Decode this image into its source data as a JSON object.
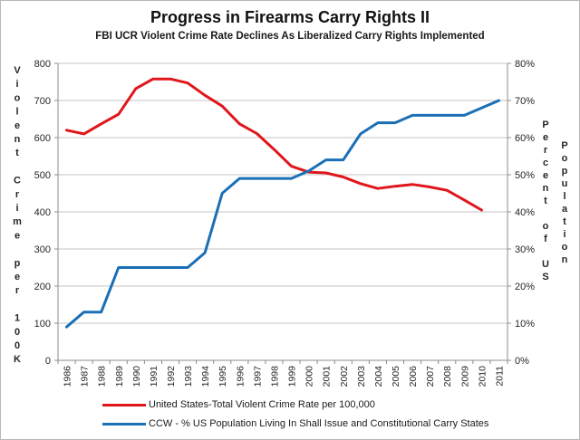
{
  "window": {
    "background": "#ffffff",
    "border_color": "#b7b7b7"
  },
  "header": {
    "title": "Progress in Firearms Carry Rights II",
    "subtitle": "FBI UCR Violent Crime Rate Declines As Liberalized Carry Rights Implemented"
  },
  "chart_data": {
    "type": "line",
    "title": "Progress in Firearms Carry Rights II",
    "subtitle": "FBI UCR Violent Crime Rate Declines As Liberalized Carry Rights Implemented",
    "grid": true,
    "legend_position": "bottom",
    "x": [
      "1986",
      "1987",
      "1988",
      "1989",
      "1990",
      "1991",
      "1992",
      "1993",
      "1994",
      "1995",
      "1996",
      "1997",
      "1998",
      "1999",
      "2000",
      "2001",
      "2002",
      "2003",
      "2004",
      "2005",
      "2006",
      "2007",
      "2008",
      "2009",
      "2010",
      "2011"
    ],
    "series": [
      {
        "name": "United States-Total Violent Crime Rate per 100,000",
        "axis": "left",
        "color": "#e0161c",
        "values": [
          620,
          610,
          637,
          663,
          732,
          758,
          758,
          747,
          714,
          685,
          637,
          611,
          568,
          523,
          507,
          505,
          494,
          476,
          463,
          469,
          474,
          467,
          458,
          432,
          405,
          null
        ]
      },
      {
        "name": "CCW - % US Population Living In Shall Issue and Constitutional Carry States",
        "axis": "right",
        "color": "#1a6fb5",
        "values": [
          9,
          13,
          13,
          25,
          25,
          25,
          25,
          25,
          29,
          45,
          49,
          49,
          49,
          49,
          51,
          54,
          54,
          61,
          64,
          64,
          66,
          66,
          66,
          66,
          68,
          70
        ]
      }
    ],
    "left_axis": {
      "label": "Violent Crime per 100K",
      "min": 0,
      "max": 800,
      "step": 100,
      "ticks": [
        "0",
        "100",
        "200",
        "300",
        "400",
        "500",
        "600",
        "700",
        "800"
      ]
    },
    "right_axis": {
      "label_line1": "Percent of US",
      "label_line2": "Population",
      "min": 0,
      "max": 80,
      "step": 10,
      "ticks": [
        "0%",
        "10%",
        "20%",
        "30%",
        "40%",
        "50%",
        "60%",
        "70%",
        "80%"
      ]
    }
  },
  "legend": {
    "items": [
      {
        "label": "United States-Total Violent Crime Rate per 100,000",
        "color": "#e0161c"
      },
      {
        "label": "CCW - % US Population Living In Shall Issue and Constitutional Carry States",
        "color": "#1a6fb5"
      }
    ]
  },
  "style": {
    "gridline_color": "#c6c6c6",
    "axis_color": "#8c8c8c",
    "tick_label_color": "#262626"
  }
}
